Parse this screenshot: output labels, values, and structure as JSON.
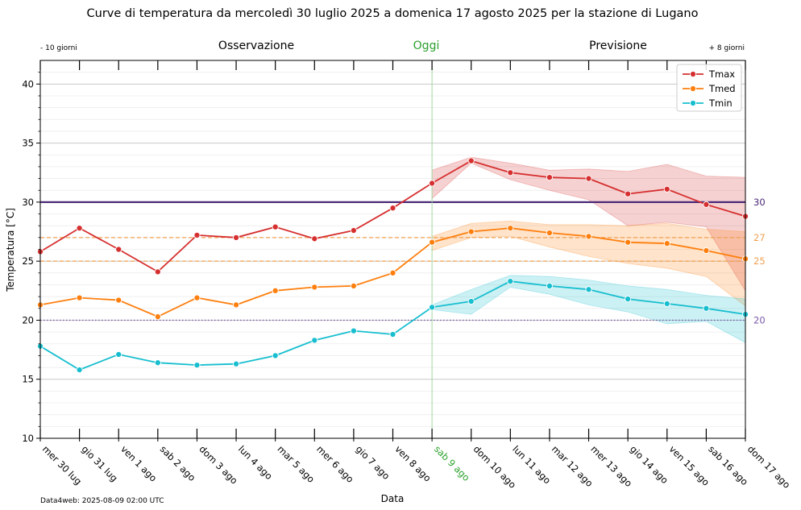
{
  "chart_data": {
    "type": "line",
    "title": "Curve di temperatura da mercoledì 30 luglio 2025 a domenica 17 agosto 2025 per la stazione di Lugano",
    "xlabel": "Data",
    "ylabel": "Temperatura [°C]",
    "ylim": [
      10,
      42
    ],
    "yticks": [
      10,
      15,
      20,
      25,
      30,
      35,
      40
    ],
    "categories": [
      "mer 30 lug",
      "gio 31 lug",
      "ven 1 ago",
      "sab 2 ago",
      "dom 3 ago",
      "lun 4 ago",
      "mar 5 ago",
      "mer 6 ago",
      "gio 7 ago",
      "ven 8 ago",
      "sab 9 ago",
      "dom 10 ago",
      "lun 11 ago",
      "mar 12 ago",
      "mer 13 ago",
      "gio 14 ago",
      "ven 15 ago",
      "sab 16 ago",
      "dom 17 ago"
    ],
    "today_index": 10,
    "header": {
      "left": "- 10 giorni",
      "observation": "Osservazione",
      "today": "Oggi",
      "forecast": "Previsione",
      "right": "+ 8 giorni"
    },
    "footer": "Data4web: 2025-08-09 02:00 UTC",
    "legend_position": "top-right",
    "series": [
      {
        "name": "Tmax",
        "color": "#d62f2f",
        "values": [
          25.8,
          27.8,
          26.0,
          24.1,
          27.2,
          27.0,
          27.9,
          26.9,
          27.6,
          29.5,
          31.6,
          33.5,
          32.5,
          32.1,
          32.0,
          30.7,
          31.1,
          29.8,
          28.8
        ],
        "band_low": [
          null,
          null,
          null,
          null,
          null,
          null,
          null,
          null,
          null,
          null,
          30.3,
          33.3,
          31.9,
          31.0,
          30.2,
          28.0,
          28.3,
          27.9,
          22.5
        ],
        "band_high": [
          null,
          null,
          null,
          null,
          null,
          null,
          null,
          null,
          null,
          null,
          32.7,
          33.8,
          33.3,
          32.7,
          32.8,
          32.6,
          33.2,
          32.2,
          32.1
        ]
      },
      {
        "name": "Tmed",
        "color": "#ff7f0e",
        "values": [
          21.3,
          21.9,
          21.7,
          20.3,
          21.9,
          21.3,
          22.5,
          22.8,
          22.9,
          24.0,
          26.6,
          27.5,
          27.8,
          27.4,
          27.1,
          26.6,
          26.5,
          25.9,
          25.2
        ],
        "band_low": [
          null,
          null,
          null,
          null,
          null,
          null,
          null,
          null,
          null,
          null,
          25.9,
          27.0,
          27.1,
          26.2,
          25.4,
          24.8,
          24.4,
          23.7,
          21.2
        ],
        "band_high": [
          null,
          null,
          null,
          null,
          null,
          null,
          null,
          null,
          null,
          null,
          27.1,
          28.2,
          28.4,
          28.1,
          28.1,
          28.0,
          28.2,
          27.7,
          27.5
        ]
      },
      {
        "name": "Tmin",
        "color": "#17becf",
        "values": [
          17.8,
          15.8,
          17.1,
          16.4,
          16.2,
          16.3,
          17.0,
          18.3,
          19.1,
          18.8,
          21.1,
          21.6,
          23.3,
          22.9,
          22.6,
          21.8,
          21.4,
          21.0,
          20.5
        ],
        "band_low": [
          null,
          null,
          null,
          null,
          null,
          null,
          null,
          null,
          null,
          null,
          20.9,
          20.5,
          22.8,
          22.2,
          21.3,
          20.7,
          19.7,
          19.9,
          18.1
        ],
        "band_high": [
          null,
          null,
          null,
          null,
          null,
          null,
          null,
          null,
          null,
          null,
          21.3,
          22.6,
          23.8,
          23.7,
          23.4,
          22.9,
          22.6,
          22.1,
          21.8
        ]
      }
    ],
    "reference_lines": [
      {
        "value": 30,
        "label": "30",
        "color": "#4b2a78",
        "style": "solid"
      },
      {
        "value": 27,
        "label": "27",
        "color": "#f0a050",
        "style": "dashed"
      },
      {
        "value": 25,
        "label": "25",
        "color": "#f0a050",
        "style": "dashed"
      },
      {
        "value": 20,
        "label": "20",
        "color": "#7a5aa8",
        "style": "dotted"
      }
    ]
  }
}
